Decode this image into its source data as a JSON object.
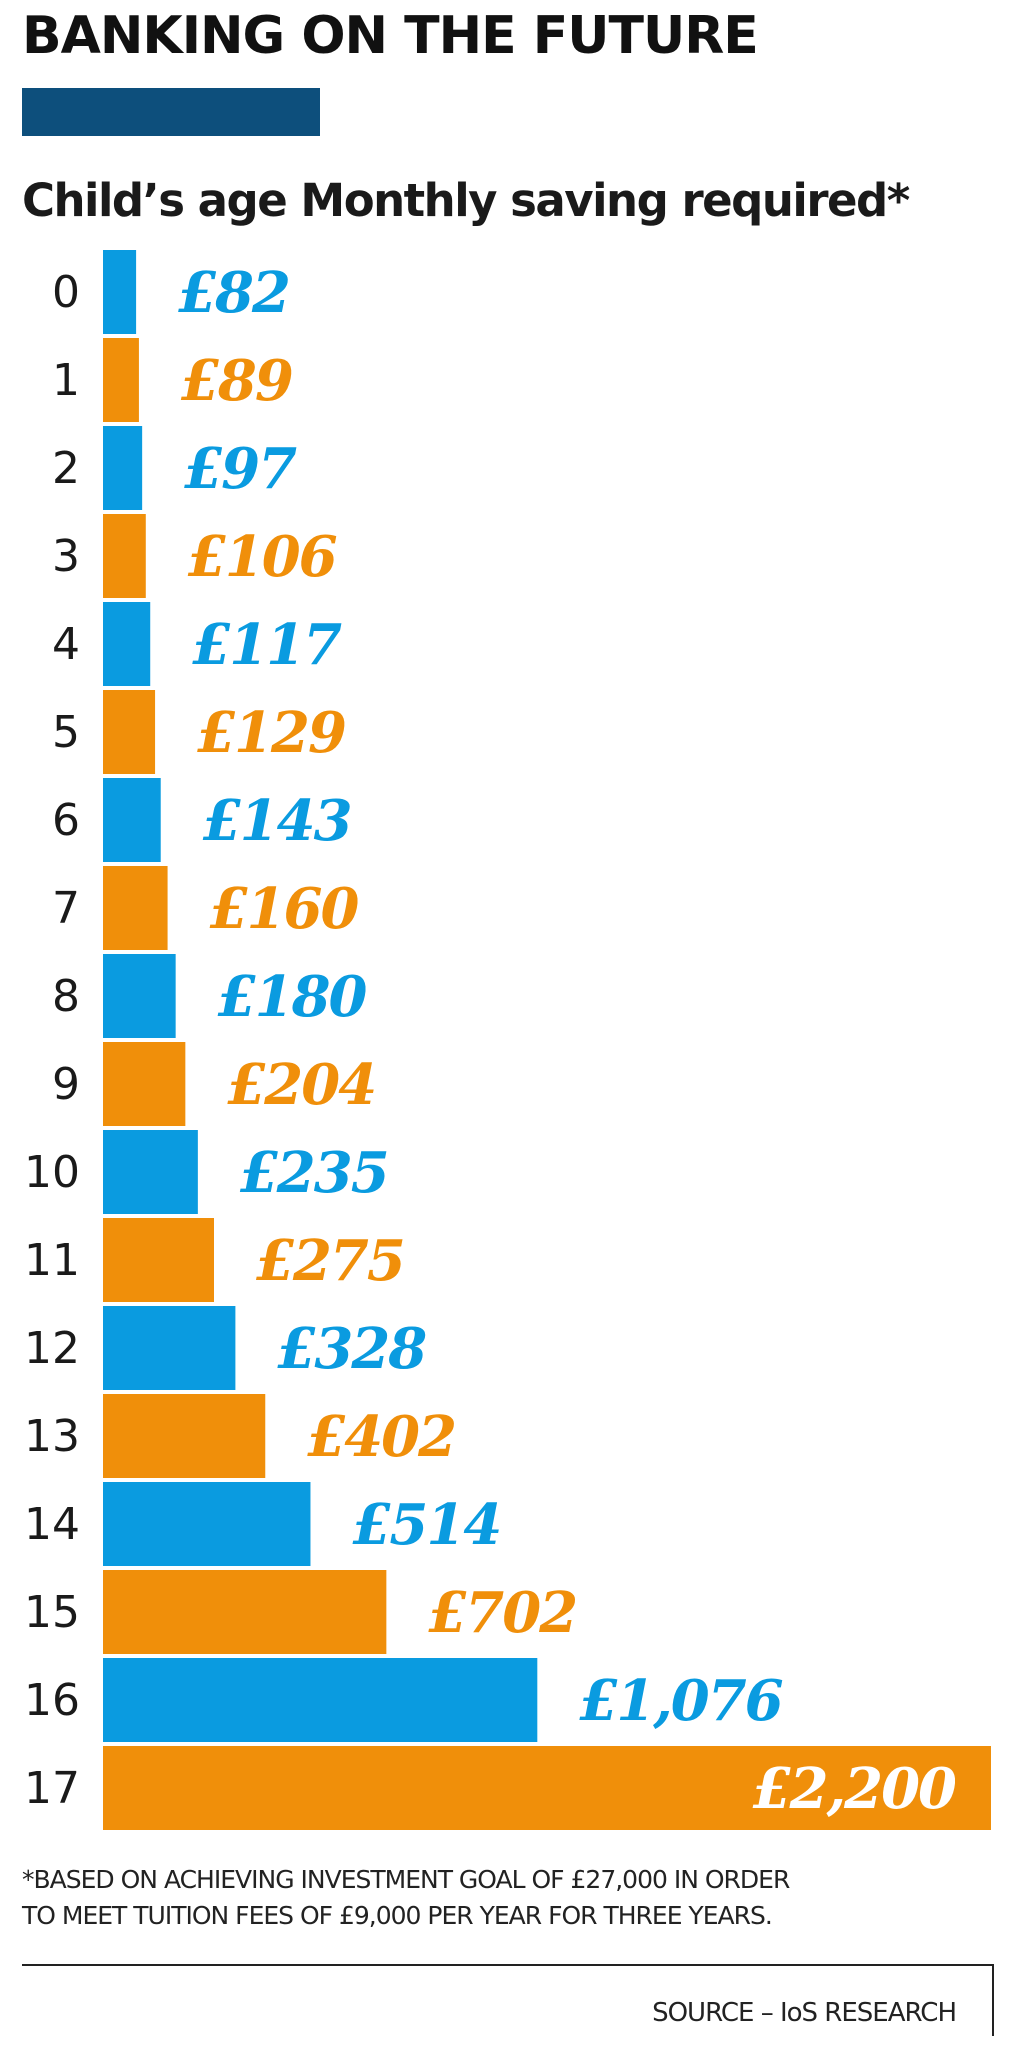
{
  "header": {
    "title": "BANKING ON THE FUTURE",
    "subtitle": "Child’s age Monthly saving required*"
  },
  "colors": {
    "title_bar": "#0d4f7c",
    "blue": "#0a9be0",
    "orange": "#f08f0a",
    "label_inside": "#ffffff"
  },
  "chart_data": {
    "type": "bar",
    "orientation": "horizontal",
    "categories": [
      "0",
      "1",
      "2",
      "3",
      "4",
      "5",
      "6",
      "7",
      "8",
      "9",
      "10",
      "11",
      "12",
      "13",
      "14",
      "15",
      "16",
      "17"
    ],
    "values": [
      82,
      89,
      97,
      106,
      117,
      129,
      143,
      160,
      180,
      204,
      235,
      275,
      328,
      402,
      514,
      702,
      1076,
      2200
    ],
    "value_labels": [
      "£82",
      "£89",
      "£97",
      "£106",
      "£117",
      "£129",
      "£143",
      "£160",
      "£180",
      "£204",
      "£235",
      "£275",
      "£328",
      "£402",
      "£514",
      "£702",
      "£1,076",
      "£2,200"
    ],
    "bar_colors": [
      "blue",
      "orange",
      "blue",
      "orange",
      "blue",
      "orange",
      "blue",
      "orange",
      "blue",
      "orange",
      "blue",
      "orange",
      "blue",
      "orange",
      "blue",
      "orange",
      "blue",
      "orange"
    ],
    "xlim": [
      0,
      2200
    ],
    "grid": false,
    "legend": "none"
  },
  "footnote": {
    "line1": "*BASED ON ACHIEVING INVESTMENT GOAL OF £27,000 IN ORDER",
    "line2": "TO MEET TUITION FEES OF £9,000 PER YEAR FOR THREE YEARS."
  },
  "source": "SOURCE – IoS RESEARCH"
}
